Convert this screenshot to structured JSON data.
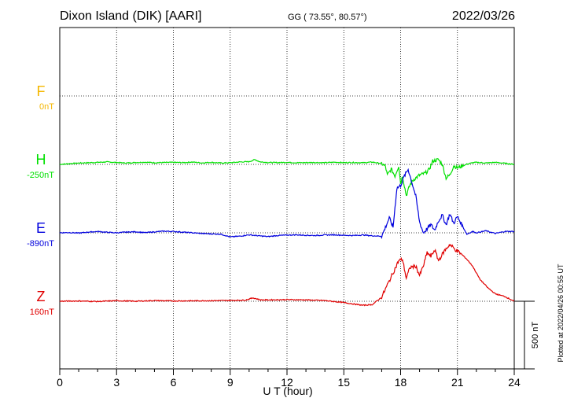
{
  "header": {
    "station": "Dixon Island (DIK)  [AARI]",
    "coordinates": "GG ( 73.55°,  80.57°)",
    "date": "2022/03/26"
  },
  "footer": {
    "plotted": "Plotted at 2022/04/26 00:55 UT"
  },
  "chart_data": {
    "type": "line",
    "xlabel": "U T (hour)",
    "xlim": [
      0,
      24
    ],
    "xticks": [
      0,
      3,
      6,
      9,
      12,
      15,
      18,
      21,
      24
    ],
    "grid": true,
    "scale_bar": {
      "label": "500 nT",
      "value": 500
    },
    "components": [
      {
        "name": "F",
        "baseline_label": "0nT",
        "baseline": 0,
        "color": "#f5b700",
        "values": []
      },
      {
        "name": "H",
        "baseline_label": "-250nT",
        "baseline": -250,
        "color": "#00e000",
        "x": [
          0,
          0.5,
          1,
          1.5,
          2,
          2.5,
          3,
          3.5,
          4,
          4.5,
          5,
          5.5,
          6,
          6.5,
          7,
          7.5,
          8,
          8.5,
          9,
          9.5,
          10,
          10.3,
          10.6,
          11,
          11.5,
          12,
          12.5,
          13,
          13.5,
          14,
          14.5,
          15,
          15.5,
          16,
          16.5,
          17,
          17.2,
          17.3,
          17.5,
          17.7,
          17.9,
          18,
          18.1,
          18.3,
          18.5,
          18.7,
          19,
          19.3,
          19.5,
          19.7,
          20,
          20.2,
          20.4,
          20.6,
          20.8,
          21,
          21.3,
          21.5,
          21.8,
          22,
          22.5,
          23,
          23.5,
          24
        ],
        "values": [
          -250,
          -245,
          -240,
          -238,
          -235,
          -232,
          -236,
          -240,
          -236,
          -234,
          -238,
          -236,
          -235,
          -237,
          -233,
          -239,
          -235,
          -240,
          -238,
          -232,
          -230,
          -215,
          -232,
          -236,
          -237,
          -235,
          -238,
          -237,
          -236,
          -238,
          -234,
          -237,
          -236,
          -238,
          -233,
          -244,
          -265,
          -330,
          -285,
          -335,
          -260,
          -390,
          -335,
          -480,
          -400,
          -360,
          -330,
          -315,
          -290,
          -225,
          -215,
          -250,
          -350,
          -330,
          -260,
          -275,
          -260,
          -248,
          -238,
          -235,
          -240,
          -235,
          -242,
          -250
        ]
      },
      {
        "name": "E",
        "baseline_label": "-890nT",
        "baseline": -890,
        "color": "#0000dd",
        "x": [
          0,
          0.5,
          1,
          1.5,
          2,
          2.5,
          3,
          3.5,
          4,
          4.5,
          5,
          5.5,
          6,
          6.5,
          7,
          7.5,
          8,
          8.5,
          9,
          9.5,
          10,
          10.5,
          11,
          11.5,
          12,
          12.5,
          13,
          13.5,
          14,
          14.5,
          15,
          15.5,
          16,
          16.5,
          17,
          17.2,
          17.4,
          17.6,
          17.8,
          18,
          18.2,
          18.4,
          18.6,
          18.8,
          19,
          19.2,
          19.4,
          19.6,
          19.8,
          20,
          20.2,
          20.4,
          20.6,
          20.8,
          21,
          21.3,
          21.5,
          21.8,
          22,
          22.5,
          23,
          23.5,
          24
        ],
        "values": [
          -890,
          -888,
          -892,
          -885,
          -880,
          -886,
          -890,
          -885,
          -882,
          -889,
          -883,
          -878,
          -880,
          -885,
          -890,
          -895,
          -898,
          -900,
          -920,
          -915,
          -905,
          -912,
          -918,
          -910,
          -907,
          -905,
          -908,
          -910,
          -906,
          -905,
          -908,
          -910,
          -906,
          -912,
          -915,
          -850,
          -780,
          -850,
          -560,
          -540,
          -470,
          -420,
          -520,
          -620,
          -810,
          -890,
          -860,
          -830,
          -870,
          -800,
          -760,
          -830,
          -750,
          -820,
          -770,
          -850,
          -900,
          -880,
          -890,
          -875,
          -895,
          -880,
          -880
        ]
      },
      {
        "name": "Z",
        "baseline_label": "160nT",
        "baseline": 160,
        "color": "#e00000",
        "x": [
          0,
          1,
          2,
          3,
          4,
          5,
          6,
          7,
          8,
          9,
          9.8,
          10.2,
          10.6,
          11,
          12,
          13,
          14,
          15,
          16,
          16.5,
          17,
          17.3,
          17.6,
          17.9,
          18.1,
          18.3,
          18.5,
          18.8,
          19,
          19.2,
          19.4,
          19.6,
          19.8,
          20,
          20.3,
          20.6,
          20.9,
          21.2,
          21.5,
          21.8,
          22.2,
          22.6,
          23,
          23.5,
          24
        ],
        "values": [
          160,
          162,
          158,
          164,
          160,
          165,
          162,
          163,
          164,
          166,
          168,
          185,
          170,
          170,
          172,
          170,
          165,
          150,
          130,
          135,
          190,
          280,
          370,
          460,
          470,
          330,
          410,
          420,
          350,
          420,
          520,
          490,
          540,
          460,
          530,
          580,
          540,
          510,
          470,
          420,
          320,
          260,
          215,
          195,
          160
        ]
      }
    ]
  }
}
